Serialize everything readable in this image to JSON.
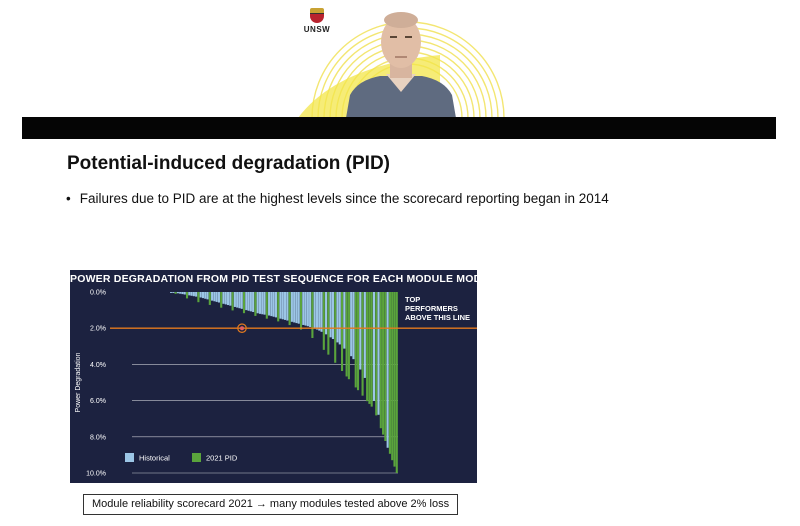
{
  "header": {
    "logo_text": "UNSW"
  },
  "slide": {
    "title": "Potential-induced degradation (PID)",
    "bullet_marker": "•",
    "bullet": "Failures due to PID are at the highest levels since the scorecard reporting began in 2014",
    "caption": "Module reliability scorecard 2021 → many modules tested above 2% loss"
  },
  "colors": {
    "panel": "#1c2240",
    "historical": "#9cc6e6",
    "pid_2021": "#5aa43c",
    "threshold_line": "#e47a1e",
    "gridline": "#ffffff"
  },
  "chart_data": {
    "type": "bar",
    "title": "POWER DEGRADATION FROM PID TEST SEQUENCE FOR EACH MODULE MODEL",
    "xlabel": "",
    "ylabel": "Power Degradation",
    "y_inverted": true,
    "ylim": [
      0,
      10
    ],
    "y_ticks": [
      "0.0%",
      "2.0%",
      "4.0%",
      "6.0%",
      "8.0%",
      "10.0%"
    ],
    "grid": true,
    "threshold": {
      "value": 2.0,
      "label": [
        "TOP",
        "PERFORMERS",
        "ABOVE THIS LINE"
      ]
    },
    "legend": {
      "placement": "bottom-left",
      "entries": [
        "Historical",
        "2021 PID"
      ]
    },
    "series": [
      {
        "name": "Historical",
        "sorted_degradation": [
          0.0,
          0.1,
          0.2,
          0.3,
          0.45,
          0.6,
          0.75,
          0.9,
          1.05,
          1.2,
          1.3,
          1.45,
          1.6,
          1.75,
          1.9,
          2.1,
          2.4,
          2.8,
          3.3,
          4.0,
          5.0,
          6.5,
          8.5,
          10.0
        ]
      },
      {
        "name": "2021 PID",
        "sorted_degradation": [
          0.0,
          0.5,
          0.8,
          1.1,
          1.4,
          1.7,
          2.2,
          3.5,
          5.0,
          6.5,
          10.0
        ]
      }
    ]
  }
}
